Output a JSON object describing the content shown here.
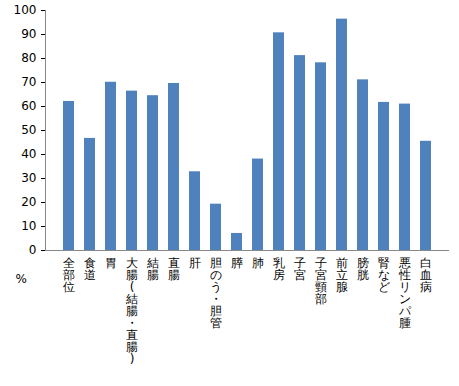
{
  "chart_data": {
    "type": "bar",
    "categories": [
      "全部位",
      "食道",
      "胃",
      "大腸(結腸・直腸)",
      "結腸",
      "直腸",
      "肝",
      "胆のう・胆管",
      "膵",
      "肺",
      "乳房",
      "子宮",
      "子宮頸部",
      "前立腺",
      "膀胱",
      "腎など",
      "悪性リンパ腫",
      "白血病"
    ],
    "values": [
      62.1,
      46.7,
      70.1,
      66.4,
      64.5,
      69.6,
      32.8,
      19.3,
      7.1,
      38.1,
      90.7,
      81.2,
      78.2,
      96.4,
      71.1,
      61.7,
      61.0,
      45.5
    ],
    "color": "#4f81bd",
    "y_label": "%",
    "ylim": [
      0,
      100
    ],
    "yticks": [
      0,
      10,
      20,
      30,
      40,
      50,
      60,
      70,
      80,
      90,
      100
    ],
    "grid": false
  }
}
